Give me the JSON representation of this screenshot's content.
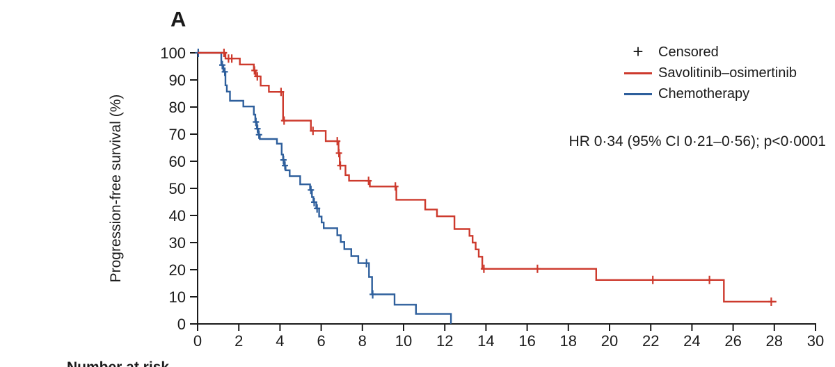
{
  "figure": {
    "panel_label": "A",
    "annotation": "HR 0·34 (95% CI 0·21–0·56); p<0·0001",
    "number_at_risk_label": "Number at risk"
  },
  "legend": {
    "censored": {
      "marker": "+",
      "label": "Censored"
    },
    "items": [
      {
        "label": "Savolitinib–osimertinib",
        "color": "#cd3a2d"
      },
      {
        "label": "Chemotherapy",
        "color": "#2e5f9c"
      }
    ]
  },
  "colors": {
    "axis": "#1a1a1a",
    "savolitinib_osimertinib": "#cd3a2d",
    "chemotherapy": "#2e5f9c"
  },
  "chart_data": {
    "type": "line",
    "subtype": "kaplan-meier-step",
    "title": "",
    "xlabel": "",
    "ylabel": "Progression-free survival (%)",
    "xlim": [
      0,
      30
    ],
    "ylim": [
      0,
      100
    ],
    "x_ticks": [
      0,
      2,
      4,
      6,
      8,
      10,
      12,
      14,
      16,
      18,
      20,
      22,
      24,
      26,
      28,
      30
    ],
    "y_ticks": [
      0,
      10,
      20,
      30,
      40,
      50,
      60,
      70,
      80,
      90,
      100
    ],
    "grid": false,
    "legend_position": "top-right",
    "annotation": "HR 0·34 (95% CI 0·21–0·56); p<0·0001",
    "series": [
      {
        "id": "savolitinib-osimertinib",
        "name": "Savolitinib–osimertinib",
        "color": "#cd3a2d",
        "end": 28.1,
        "steps": [
          [
            0,
            100
          ],
          [
            1.35,
            97.9
          ],
          [
            2.05,
            95.7
          ],
          [
            2.73,
            93.5
          ],
          [
            2.82,
            91.3
          ],
          [
            3.06,
            87.9
          ],
          [
            3.46,
            85.6
          ],
          [
            4.15,
            75.0
          ],
          [
            5.5,
            71.2
          ],
          [
            6.22,
            67.4
          ],
          [
            6.84,
            63.0
          ],
          [
            6.9,
            58.4
          ],
          [
            7.18,
            54.9
          ],
          [
            7.35,
            52.8
          ],
          [
            8.36,
            50.7
          ],
          [
            9.65,
            45.8
          ],
          [
            11.05,
            42.2
          ],
          [
            11.62,
            39.7
          ],
          [
            12.47,
            35.0
          ],
          [
            13.2,
            32.5
          ],
          [
            13.35,
            30.0
          ],
          [
            13.5,
            27.5
          ],
          [
            13.65,
            24.8
          ],
          [
            13.82,
            20.3
          ],
          [
            19.35,
            16.2
          ],
          [
            25.55,
            8.2
          ]
        ],
        "censors": [
          [
            1.28,
            100
          ],
          [
            1.5,
            97.9
          ],
          [
            1.66,
            97.9
          ],
          [
            2.76,
            93.5
          ],
          [
            2.9,
            91.3
          ],
          [
            4.05,
            85.6
          ],
          [
            4.2,
            75.0
          ],
          [
            5.6,
            71.2
          ],
          [
            6.78,
            67.4
          ],
          [
            6.86,
            63.0
          ],
          [
            6.93,
            58.4
          ],
          [
            8.3,
            52.8
          ],
          [
            9.6,
            50.7
          ],
          [
            13.9,
            20.3
          ],
          [
            16.5,
            20.3
          ],
          [
            22.1,
            16.2
          ],
          [
            24.85,
            16.2
          ],
          [
            27.85,
            8.2
          ]
        ]
      },
      {
        "id": "chemotherapy",
        "name": "Chemotherapy",
        "color": "#2e5f9c",
        "end": 12.32,
        "steps": [
          [
            0,
            100
          ],
          [
            1.15,
            95.5
          ],
          [
            1.25,
            93.0
          ],
          [
            1.35,
            88.0
          ],
          [
            1.42,
            85.7
          ],
          [
            1.57,
            82.3
          ],
          [
            2.22,
            80.2
          ],
          [
            2.73,
            77.2
          ],
          [
            2.8,
            74.5
          ],
          [
            2.88,
            72.0
          ],
          [
            2.95,
            69.8
          ],
          [
            3.02,
            68.2
          ],
          [
            3.85,
            66.5
          ],
          [
            4.08,
            62.5
          ],
          [
            4.15,
            60.5
          ],
          [
            4.2,
            58.4
          ],
          [
            4.27,
            56.7
          ],
          [
            4.47,
            54.5
          ],
          [
            4.98,
            51.5
          ],
          [
            5.46,
            49.4
          ],
          [
            5.55,
            46.8
          ],
          [
            5.62,
            44.9
          ],
          [
            5.76,
            42.6
          ],
          [
            5.9,
            39.6
          ],
          [
            6.02,
            37.4
          ],
          [
            6.12,
            35.3
          ],
          [
            6.78,
            32.7
          ],
          [
            6.95,
            30.2
          ],
          [
            7.12,
            27.6
          ],
          [
            7.46,
            25.0
          ],
          [
            7.8,
            22.4
          ],
          [
            8.32,
            17.3
          ],
          [
            8.47,
            10.9
          ],
          [
            9.56,
            7.1
          ],
          [
            10.6,
            3.7
          ],
          [
            12.3,
            0.3
          ]
        ],
        "censors": [
          [
            0.03,
            100
          ],
          [
            1.2,
            95.5
          ],
          [
            1.32,
            93.0
          ],
          [
            2.83,
            74.5
          ],
          [
            2.91,
            72.0
          ],
          [
            2.98,
            69.8
          ],
          [
            4.17,
            60.5
          ],
          [
            4.24,
            58.4
          ],
          [
            5.5,
            49.4
          ],
          [
            5.66,
            44.9
          ],
          [
            5.8,
            42.6
          ],
          [
            8.2,
            22.4
          ],
          [
            8.5,
            10.9
          ]
        ]
      }
    ]
  }
}
